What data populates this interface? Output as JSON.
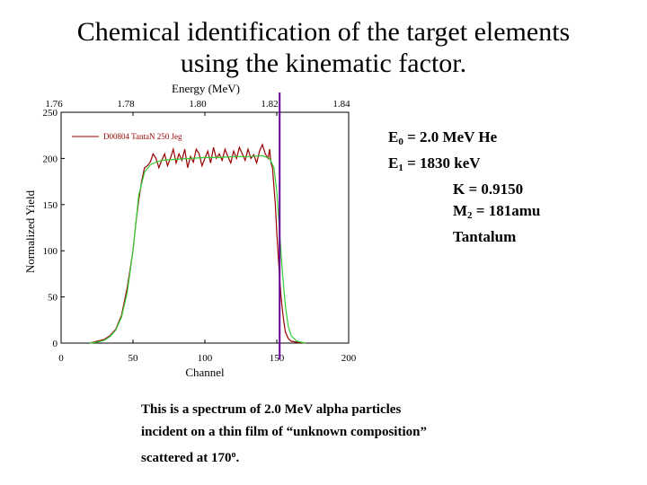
{
  "slide": {
    "title_line1": "Chemical identification of the target elements",
    "title_line2": "using the kinematic factor."
  },
  "params": {
    "e0_main": "E",
    "e0_sub": "0",
    "e0_rest": " = 2.0 MeV He",
    "e1_main": "E",
    "e1_sub": "1",
    "e1_rest": " = 1830 keV",
    "k": "K = 0.9150",
    "m2_main": "M",
    "m2_sub": "2",
    "m2_rest": " = 181amu",
    "element": "Tantalum"
  },
  "caption": {
    "line1": "This is a spectrum of 2.0 MeV alpha particles",
    "line2": "incident on a thin film of “unknown composition”",
    "line3_main": "scattered at 170",
    "line3_sup": "o",
    "line3_end": "."
  },
  "colors": {
    "measured": "#990000",
    "simulated": "#33cc33",
    "marker": "#660099",
    "axes": "#000000"
  },
  "chart_data": {
    "type": "line",
    "xlabel": "Channel",
    "ylabel": "Normalized Yield",
    "top_axis_label": "Energy (MeV)",
    "xlim": [
      0,
      200
    ],
    "ylim": [
      0,
      250
    ],
    "top_axis_range": [
      1.76,
      1.84
    ],
    "x_ticks": [
      "0",
      "50",
      "100",
      "150",
      "200"
    ],
    "y_ticks": [
      "0",
      "50",
      "100",
      "150",
      "200",
      "250"
    ],
    "top_ticks": [
      "1.76",
      "1.78",
      "1.80",
      "1.82",
      "1.84"
    ],
    "legend": "D00804 TantaN 250 Jeg",
    "legend_position": "top-left",
    "marker_channel": 152,
    "series": [
      {
        "name": "D00804 TantaN 250 Jeg",
        "color_key": "measured",
        "x": [
          20,
          25,
          30,
          34,
          38,
          42,
          46,
          50,
          52,
          54,
          56,
          58,
          60,
          62,
          64,
          66,
          68,
          70,
          72,
          74,
          76,
          78,
          80,
          82,
          84,
          86,
          88,
          90,
          92,
          94,
          96,
          98,
          100,
          102,
          104,
          106,
          108,
          110,
          112,
          114,
          116,
          118,
          120,
          122,
          124,
          126,
          128,
          130,
          132,
          134,
          136,
          138,
          140,
          142,
          144,
          145,
          146,
          147,
          148,
          149,
          150,
          151,
          152,
          153,
          154,
          155,
          156,
          158,
          160,
          164,
          170
        ],
        "values": [
          0,
          2,
          4,
          8,
          15,
          30,
          60,
          100,
          130,
          155,
          175,
          190,
          192,
          196,
          205,
          200,
          190,
          198,
          205,
          192,
          200,
          210,
          195,
          205,
          198,
          210,
          190,
          202,
          196,
          210,
          205,
          192,
          200,
          208,
          195,
          212,
          200,
          205,
          198,
          210,
          202,
          195,
          208,
          200,
          212,
          205,
          198,
          210,
          200,
          204,
          195,
          208,
          215,
          205,
          200,
          210,
          195,
          190,
          170,
          150,
          120,
          95,
          70,
          50,
          35,
          22,
          12,
          5,
          2,
          1,
          0
        ]
      },
      {
        "name": "",
        "color_key": "simulated",
        "x": [
          20,
          25,
          30,
          34,
          38,
          42,
          46,
          50,
          54,
          58,
          62,
          66,
          70,
          80,
          90,
          100,
          110,
          120,
          130,
          140,
          145,
          148,
          150,
          152,
          154,
          156,
          158,
          160,
          164,
          170
        ],
        "values": [
          0,
          1,
          3,
          7,
          14,
          28,
          55,
          100,
          160,
          185,
          193,
          196,
          198,
          199,
          200,
          201,
          201,
          202,
          202,
          203,
          200,
          190,
          165,
          120,
          75,
          40,
          18,
          8,
          2,
          0
        ]
      }
    ]
  }
}
